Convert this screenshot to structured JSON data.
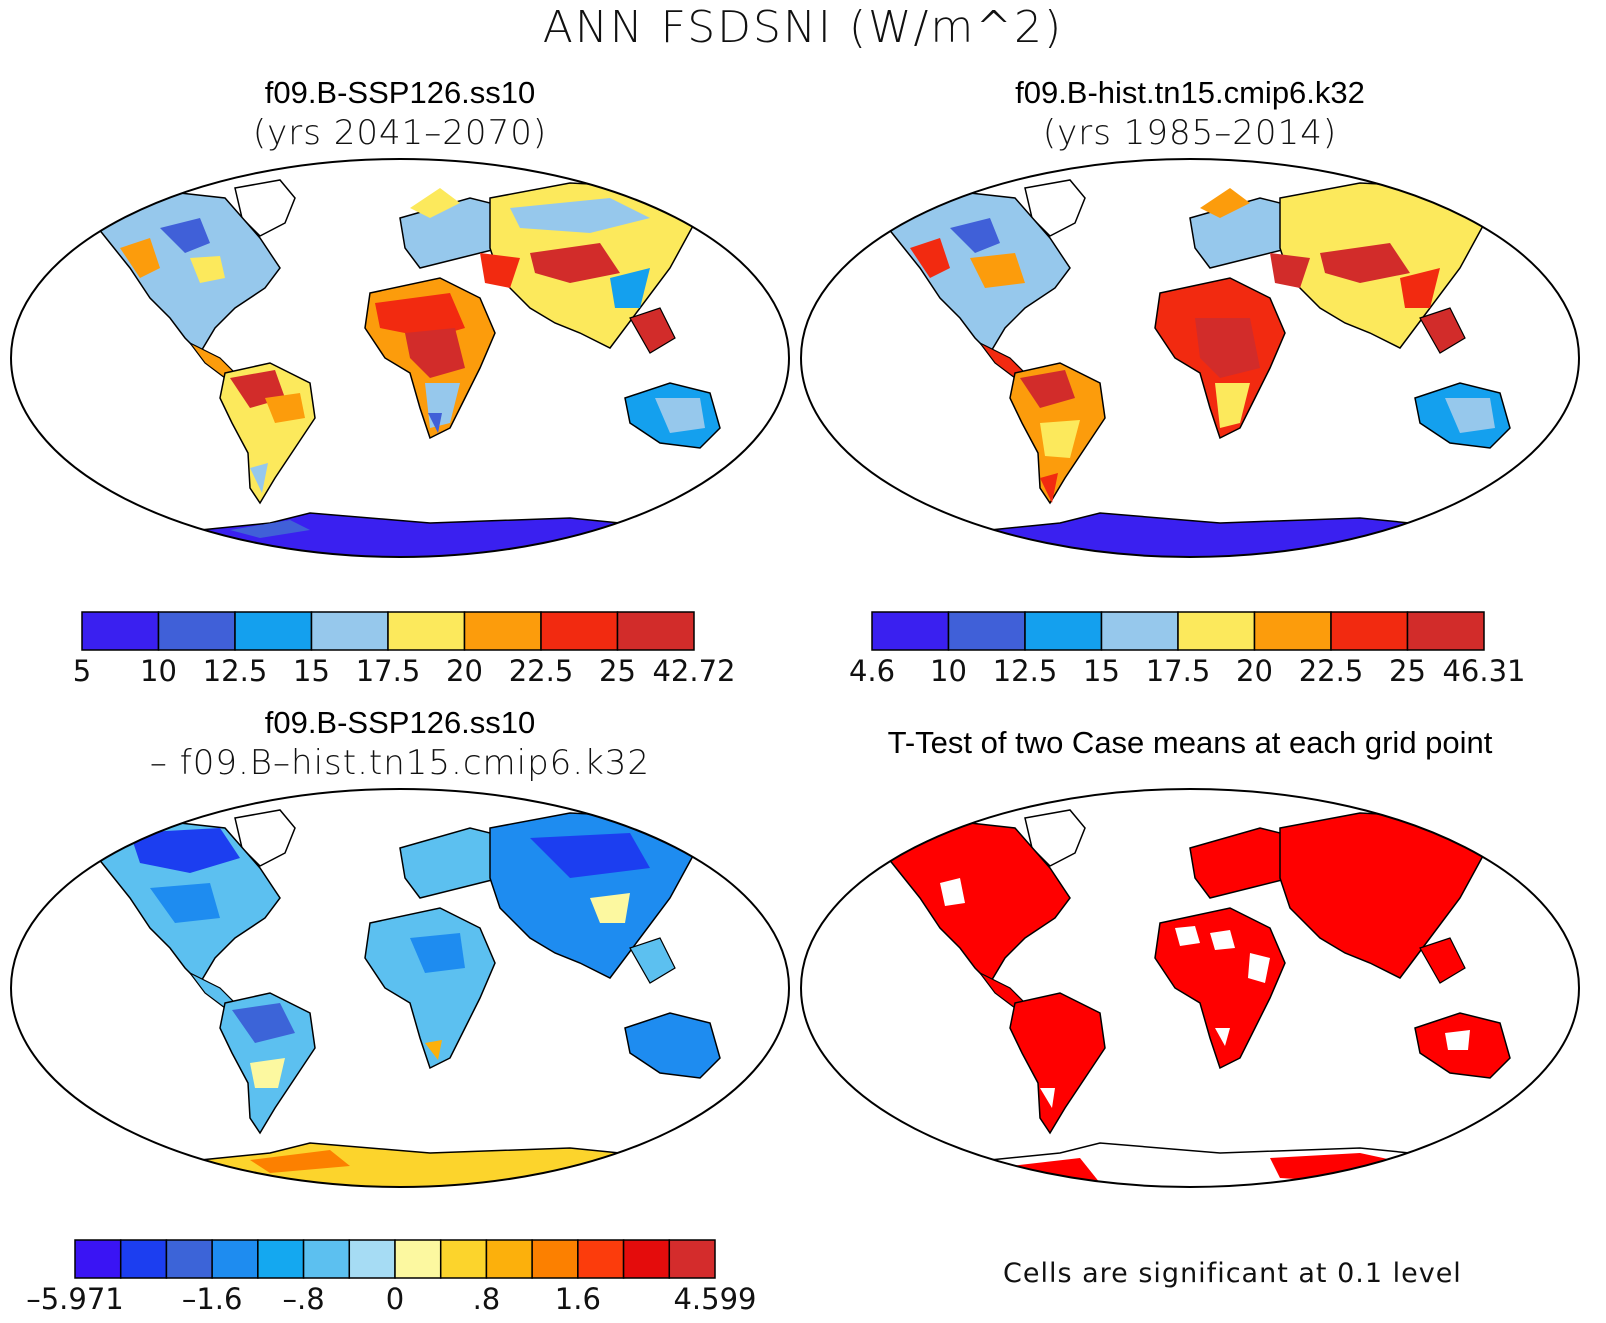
{
  "figure": {
    "title": "ANN FSDSNI (W/m^2)"
  },
  "panels": {
    "case1": {
      "name": "f09.B-SSP126.ss10",
      "years": "(yrs 2041–2070)",
      "colorbar": {
        "labels": [
          "5",
          "10",
          "12.5",
          "15",
          "17.5",
          "20",
          "22.5",
          "25",
          "42.72"
        ],
        "colors": [
          "#3a20f0",
          "#4060d8",
          "#14a0ee",
          "#96c8ec",
          "#fce95c",
          "#fc9c0c",
          "#f22a10",
          "#d22c2a"
        ]
      }
    },
    "case2": {
      "name": "f09.B-hist.tn15.cmip6.k32",
      "years": "(yrs 1985–2014)",
      "colorbar": {
        "labels": [
          "4.6",
          "10",
          "12.5",
          "15",
          "17.5",
          "20",
          "22.5",
          "25",
          "46.31"
        ],
        "colors": [
          "#3a20f0",
          "#4060d8",
          "#14a0ee",
          "#96c8ec",
          "#fce95c",
          "#fc9c0c",
          "#f22a10",
          "#d22c2a"
        ]
      }
    },
    "difference": {
      "line1": "f09.B-SSP126.ss10",
      "line2": "– f09.B–hist.tn15.cmip6.k32",
      "colorbar": {
        "labels": [
          "–5.971",
          "–1.6",
          "–.8",
          "0",
          ".8",
          "1.6",
          "4.599"
        ],
        "colors": [
          "#3a14f4",
          "#1c3ef0",
          "#3c64d8",
          "#1e8cf0",
          "#14a8f0",
          "#5cc0f0",
          "#a6dcf4",
          "#fcf8a0",
          "#fcd42c",
          "#fcb00c",
          "#fc8000",
          "#fc3c0c",
          "#e40c0c",
          "#d42c2c"
        ]
      }
    },
    "ttest": {
      "title": "T-Test of two Case means at each grid point",
      "note": "Cells are significant at 0.1 level",
      "significant_color": "#ff0000"
    }
  }
}
